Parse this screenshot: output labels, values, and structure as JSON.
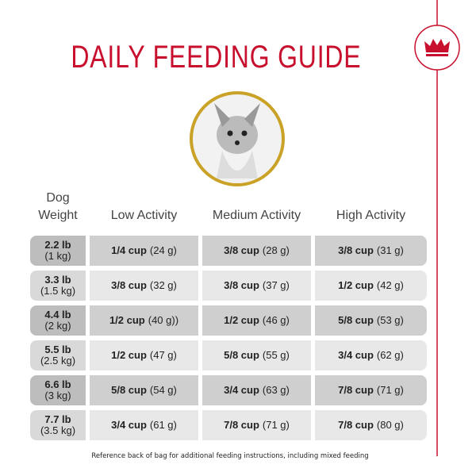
{
  "header": {
    "title": "DAILY FEEDING GUIDE"
  },
  "table": {
    "columns": [
      "Dog\nWeight",
      "Low Activity",
      "Medium Activity",
      "High Activity"
    ],
    "rows": [
      {
        "weight_lb": "2.2 lb",
        "weight_kg": "(1 kg)",
        "cells": [
          {
            "cup": "1/4 cup",
            "grams": "(24 g)"
          },
          {
            "cup": "3/8 cup",
            "grams": "(28 g)"
          },
          {
            "cup": "3/8 cup",
            "grams": "(31 g)"
          }
        ]
      },
      {
        "weight_lb": "3.3 lb",
        "weight_kg": "(1.5 kg)",
        "cells": [
          {
            "cup": "3/8 cup",
            "grams": "(32 g)"
          },
          {
            "cup": "3/8 cup",
            "grams": "(37 g)"
          },
          {
            "cup": "1/2 cup",
            "grams": "(42 g)"
          }
        ]
      },
      {
        "weight_lb": "4.4 lb",
        "weight_kg": "(2 kg)",
        "cells": [
          {
            "cup": "1/2 cup",
            "grams": "(40 g))"
          },
          {
            "cup": "1/2 cup",
            "grams": "(46 g)"
          },
          {
            "cup": "5/8 cup",
            "grams": "(53 g)"
          }
        ]
      },
      {
        "weight_lb": "5.5 lb",
        "weight_kg": "(2.5 kg)",
        "cells": [
          {
            "cup": "1/2 cup",
            "grams": "(47 g)"
          },
          {
            "cup": "5/8 cup",
            "grams": "(55 g)"
          },
          {
            "cup": "3/4 cup",
            "grams": "(62 g)"
          }
        ]
      },
      {
        "weight_lb": "6.6 lb",
        "weight_kg": "(3 kg)",
        "cells": [
          {
            "cup": "5/8 cup",
            "grams": "(54 g)"
          },
          {
            "cup": "3/4 cup",
            "grams": "(63 g)"
          },
          {
            "cup": "7/8 cup",
            "grams": "(71 g)"
          }
        ]
      },
      {
        "weight_lb": "7.7 lb",
        "weight_kg": "(3.5 kg)",
        "cells": [
          {
            "cup": "3/4 cup",
            "grams": "(61 g)"
          },
          {
            "cup": "7/8 cup",
            "grams": "(71 g)"
          },
          {
            "cup": "7/8 cup",
            "grams": "(80 g)"
          }
        ]
      }
    ]
  },
  "footer": {
    "note": "Reference back of bag for additional feeding instructions, including mixed feeding"
  }
}
